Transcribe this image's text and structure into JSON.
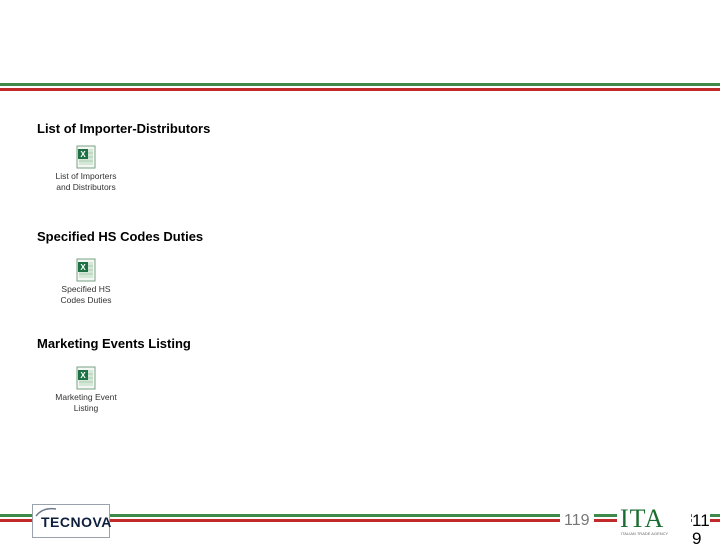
{
  "sections": [
    {
      "title": "List of Importer-Distributors",
      "attachment": {
        "icon": "excel-file-icon",
        "caption_lines": [
          "List of Importers",
          "and Distributors"
        ]
      }
    },
    {
      "title": "Specified HS Codes Duties",
      "attachment": {
        "icon": "excel-file-icon",
        "caption_lines": [
          "Specified HS",
          "Codes Duties"
        ]
      }
    },
    {
      "title": "Marketing Events Listing",
      "attachment": {
        "icon": "excel-file-icon",
        "caption_lines": [
          "Marketing Event",
          "Listing"
        ]
      }
    }
  ],
  "footer": {
    "left_logo_text": "TECNOVA",
    "page_number_middle": "119",
    "right_logo_text": "ITA",
    "right_logo_subtitle": "ITALIAN TRADE AGENCY",
    "page_number_right": [
      "11",
      "9"
    ]
  },
  "colors": {
    "stripe_green": "#3f8a4a",
    "stripe_red": "#c22a2a",
    "excel_green": "#1e7145"
  }
}
